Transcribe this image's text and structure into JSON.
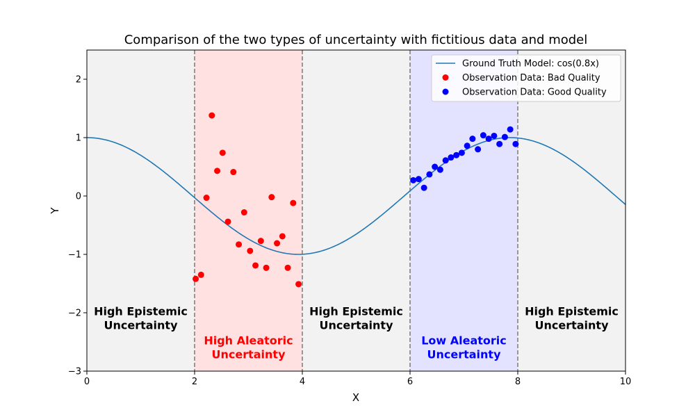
{
  "chart_data": {
    "type": "line+scatter",
    "title": "Comparison of the two types of uncertainty with fictitious data and model",
    "xlabel": "X",
    "ylabel": "Y",
    "xlim": [
      0,
      10
    ],
    "ylim": [
      -3,
      2.5
    ],
    "xticks": [
      0,
      2,
      4,
      6,
      8,
      10
    ],
    "xtick_labels": [
      "0",
      "2",
      "4",
      "6",
      "8",
      "10"
    ],
    "yticks": [
      -3,
      -2,
      -1,
      0,
      1,
      2
    ],
    "ytick_labels": [
      "−3",
      "−2",
      "−1",
      "0",
      "1",
      "2"
    ],
    "grid": false,
    "legend_position": "top-right",
    "regions": [
      {
        "x_start": 0,
        "x_end": 2,
        "color": "#f2f2f2",
        "label_lines": [
          "High Epistemic",
          "Uncertainty"
        ],
        "label_color": "#000000",
        "label_y": -2.1
      },
      {
        "x_start": 2,
        "x_end": 4,
        "color": "#ffe1e1",
        "label_lines": [
          "High Aleatoric",
          "Uncertainty"
        ],
        "label_color": "#ff0000",
        "label_y": -2.6
      },
      {
        "x_start": 4,
        "x_end": 6,
        "color": "#f2f2f2",
        "label_lines": [
          "High Epistemic",
          "Uncertainty"
        ],
        "label_color": "#000000",
        "label_y": -2.1
      },
      {
        "x_start": 6,
        "x_end": 8,
        "color": "#e3e3ff",
        "label_lines": [
          "Low Aleatoric",
          "Uncertainty"
        ],
        "label_color": "#0000ff",
        "label_y": -2.6
      },
      {
        "x_start": 8,
        "x_end": 10,
        "color": "#f2f2f2",
        "label_lines": [
          "High Epistemic",
          "Uncertainty"
        ],
        "label_color": "#000000",
        "label_y": -2.1
      }
    ],
    "boundaries": [
      2,
      4,
      6,
      8
    ],
    "series": [
      {
        "name": "Ground Truth Model: cos(0.8x)",
        "kind": "line",
        "color": "#1f77b4",
        "function": "cos(0.8x)",
        "x_range": [
          0,
          10
        ]
      },
      {
        "name": "Observation Data: Bad Quality",
        "kind": "scatter",
        "color": "#ff0000",
        "x": [
          2.02,
          2.12,
          2.22,
          2.32,
          2.42,
          2.52,
          2.62,
          2.72,
          2.82,
          2.92,
          3.03,
          3.13,
          3.23,
          3.33,
          3.43,
          3.53,
          3.63,
          3.73,
          3.83,
          3.93
        ],
        "y": [
          -1.42,
          -1.35,
          -0.03,
          1.38,
          0.43,
          0.74,
          -0.44,
          0.41,
          -0.83,
          -0.28,
          -0.94,
          -1.19,
          -0.77,
          -1.23,
          -0.02,
          -0.81,
          -0.69,
          -1.23,
          -0.12,
          -1.51
        ]
      },
      {
        "name": "Observation Data: Good Quality",
        "kind": "scatter",
        "color": "#0000ff",
        "x": [
          6.06,
          6.16,
          6.26,
          6.36,
          6.46,
          6.56,
          6.66,
          6.76,
          6.86,
          6.96,
          7.06,
          7.16,
          7.26,
          7.36,
          7.46,
          7.56,
          7.66,
          7.76,
          7.86,
          7.96
        ],
        "y": [
          0.27,
          0.29,
          0.14,
          0.37,
          0.5,
          0.45,
          0.61,
          0.66,
          0.7,
          0.74,
          0.86,
          0.98,
          0.8,
          1.04,
          0.98,
          1.03,
          0.89,
          1.01,
          1.14,
          0.89
        ]
      }
    ]
  }
}
